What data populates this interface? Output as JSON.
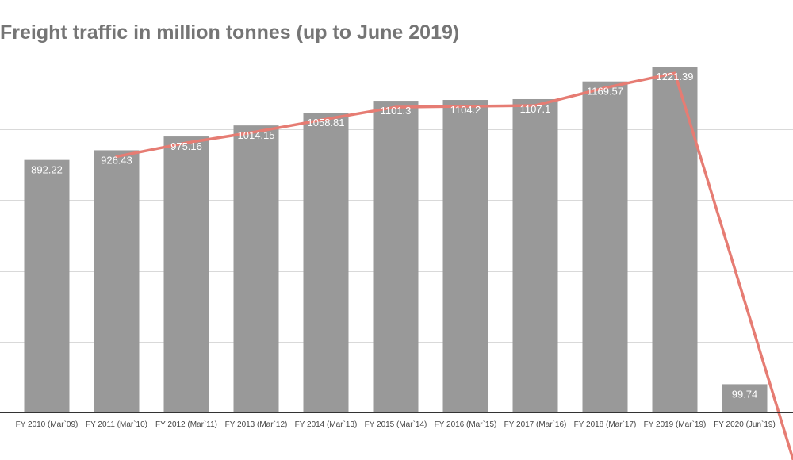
{
  "chart_data": {
    "type": "bar",
    "title": "Freight traffic in million tonnes (up to June 2019)",
    "categories": [
      "FY 2010 (Mar`09)",
      "FY 2011 (Mar`10)",
      "FY 2012 (Mar`11)",
      "FY 2013 (Mar`12)",
      "FY 2014 (Mar`13)",
      "FY 2015 (Mar`14)",
      "FY 2016 (Mar`15)",
      "FY 2017 (Mar`16)",
      "FY 2018 (Mar`17)",
      "FY 2019 (Mar`19)",
      "FY 2020 (Jun`19)"
    ],
    "values": [
      892.22,
      926.43,
      975.16,
      1014.15,
      1058.81,
      1101.3,
      1104.2,
      1107.1,
      1169.57,
      1221.39,
      99.74
    ],
    "data_labels": [
      "892.22",
      "926.43",
      "975.16",
      "1014.15",
      "1058.81",
      "1101.3",
      "1104.2",
      "1107.1",
      "1169.57",
      "1221.39",
      "99.74"
    ],
    "overlay_line": {
      "type": "line",
      "color": "#e67c73",
      "starts_at_category": "FY 2011 (Mar`10)",
      "extends_past_last_category": true
    },
    "ylim": [
      0,
      1250
    ],
    "y_gridlines": [
      0,
      250,
      500,
      750,
      1000,
      1250
    ],
    "y_tick_labels_shown": false,
    "grid": true,
    "legend": "none",
    "xlabel": "",
    "ylabel": "",
    "colors": {
      "bar": "#999999",
      "line": "#e67c73",
      "grid": "#d9d9d9",
      "title": "#757575"
    }
  }
}
